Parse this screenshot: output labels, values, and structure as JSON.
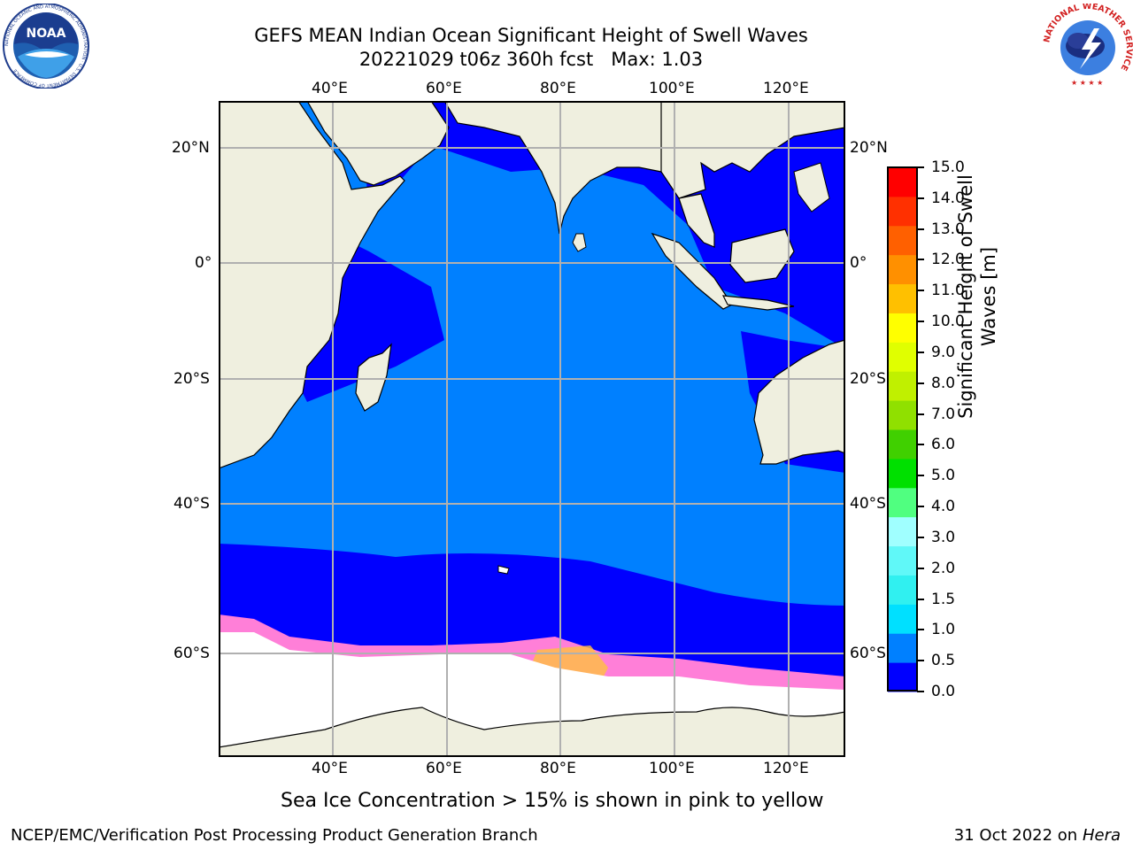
{
  "title": {
    "line1": "GEFS MEAN Indian Ocean Significant Height of Swell Waves",
    "line2": "20221029 t06z 360h fcst   Max: 1.03"
  },
  "map": {
    "lon_labels": [
      "40°E",
      "60°E",
      "80°E",
      "100°E",
      "120°E"
    ],
    "lat_labels": [
      "20°N",
      "0°",
      "20°S",
      "40°S",
      "60°S"
    ],
    "colors": {
      "land": "#efefdf",
      "ocean_low": "#0000ff",
      "ocean_mid": "#0080ff",
      "ice": "#ffffff",
      "ice_pink": "#ff7fd8",
      "ice_yellow": "#ffc040",
      "grid": "#b0b0b0"
    }
  },
  "colorbar": {
    "label_line1": "Significant Height of Swell",
    "label_line2": "Waves [m]",
    "ticks": [
      "0.0",
      "0.5",
      "1.0",
      "1.5",
      "2.0",
      "3.0",
      "4.0",
      "5.0",
      "6.0",
      "7.0",
      "8.0",
      "9.0",
      "10.0",
      "11.0",
      "12.0",
      "13.0",
      "14.0",
      "15.0"
    ],
    "colors": [
      "#0000ff",
      "#0080ff",
      "#00e0ff",
      "#30f0f0",
      "#60f8f8",
      "#a0ffff",
      "#50ff80",
      "#00e000",
      "#40d000",
      "#90e000",
      "#c0f000",
      "#e0ff00",
      "#ffff00",
      "#ffc000",
      "#ff9000",
      "#ff6000",
      "#ff3000",
      "#ff0000"
    ]
  },
  "logos": {
    "noaa_text": "NOAA",
    "noaa_ring": "NATIONAL OCEANIC AND ATMOSPHERIC ADMINISTRATION · U.S. DEPARTMENT OF COMMERCE",
    "nws_ring": "NATIONAL WEATHER SERVICE"
  },
  "note": "Sea Ice Concentration > 15% is shown in pink to yellow",
  "footer": {
    "left": "NCEP/EMC/Verification Post Processing Product Generation Branch",
    "right_prefix": "31 Oct 2022 on ",
    "right_machine": "Hera"
  }
}
